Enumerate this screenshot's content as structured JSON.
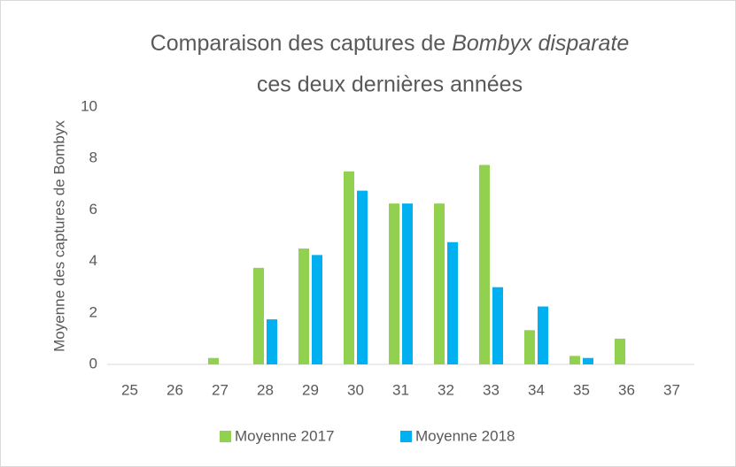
{
  "chart_data": {
    "type": "bar",
    "title": [
      "Comparaison des captures de",
      "Bombyx disparate",
      "ces deux dernières années"
    ],
    "y_label": "Moyenne des captures de Bombyx",
    "categories": [
      "25",
      "26",
      "27",
      "28",
      "29",
      "30",
      "31",
      "32",
      "33",
      "34",
      "35",
      "36",
      "37"
    ],
    "series": [
      {
        "name": "Moyenne 2017",
        "color": "#92d050",
        "values": [
          0,
          0,
          0.25,
          3.75,
          4.5,
          7.5,
          6.25,
          6.25,
          7.75,
          1.33,
          0.33,
          1,
          0
        ]
      },
      {
        "name": "Moyenne 2018",
        "color": "#00b0f0",
        "values": [
          0,
          0,
          0,
          1.75,
          4.25,
          6.75,
          6.25,
          4.75,
          3,
          2.25,
          0.25,
          0,
          0
        ]
      }
    ],
    "ylim": [
      0,
      10
    ],
    "yticks": [
      0,
      2,
      4,
      6,
      8,
      10
    ],
    "grid": false,
    "legend": "bottom"
  }
}
